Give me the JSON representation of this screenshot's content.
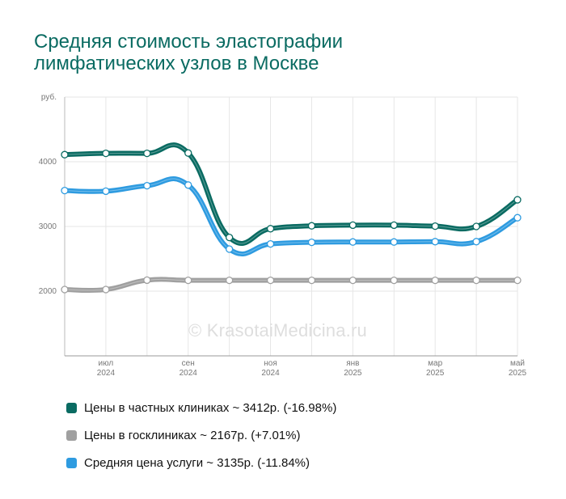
{
  "title_line1": "Средняя стоимость эластографии",
  "title_line2": "лимфатических узлов в Москве",
  "watermark": "© KrasotaiMedicina.ru",
  "chart_data": {
    "type": "line",
    "title": "Средняя стоимость эластографии лимфатических узлов в Москве",
    "ylabel": "руб.",
    "ylim": [
      1000,
      5000
    ],
    "grid": true,
    "y_ticks": [
      {
        "value": 5000,
        "label": "руб."
      },
      {
        "value": 4000,
        "label": "4000"
      },
      {
        "value": 3000,
        "label": "3000"
      },
      {
        "value": 2000,
        "label": "2000"
      }
    ],
    "x_ticks": [
      {
        "index": 1,
        "label1": "июл",
        "label2": "2024"
      },
      {
        "index": 3,
        "label1": "сен",
        "label2": "2024"
      },
      {
        "index": 5,
        "label1": "ноя",
        "label2": "2024"
      },
      {
        "index": 7,
        "label1": "янв",
        "label2": "2025"
      },
      {
        "index": 9,
        "label1": "мар",
        "label2": "2025"
      },
      {
        "index": 11,
        "label1": "май",
        "label2": "2025"
      }
    ],
    "n_points": 12,
    "series": [
      {
        "name": "Цены в госклиниках ~ 2167р. (+7.01%)",
        "color": "#a0a0a0",
        "values": [
          2025,
          2025,
          2170,
          2167,
          2167,
          2167,
          2167,
          2167,
          2167,
          2167,
          2167,
          2167
        ]
      },
      {
        "name": "Средняя цена услуги ~ 3135р. (-11.84%)",
        "color": "#2e9be0",
        "values": [
          3555,
          3545,
          3630,
          3640,
          2650,
          2730,
          2755,
          2760,
          2760,
          2765,
          2765,
          3135
        ]
      },
      {
        "name": "Цены в частных клиниках ~ 3412р. (-16.98%)",
        "color": "#0a6b62",
        "values": [
          4110,
          4130,
          4130,
          4135,
          2830,
          2965,
          3010,
          3020,
          3020,
          3005,
          3000,
          3412
        ]
      }
    ],
    "legend": [
      {
        "label": "Цены в частных клиниках ~ 3412р. (-16.98%)",
        "color": "#0a6b62"
      },
      {
        "label": "Цены в госклиниках ~ 2167р. (+7.01%)",
        "color": "#a0a0a0"
      },
      {
        "label": "Средняя цена услуги ~ 3135р. (-11.84%)",
        "color": "#2e9be0"
      }
    ],
    "legend_position": "bottom-left"
  }
}
